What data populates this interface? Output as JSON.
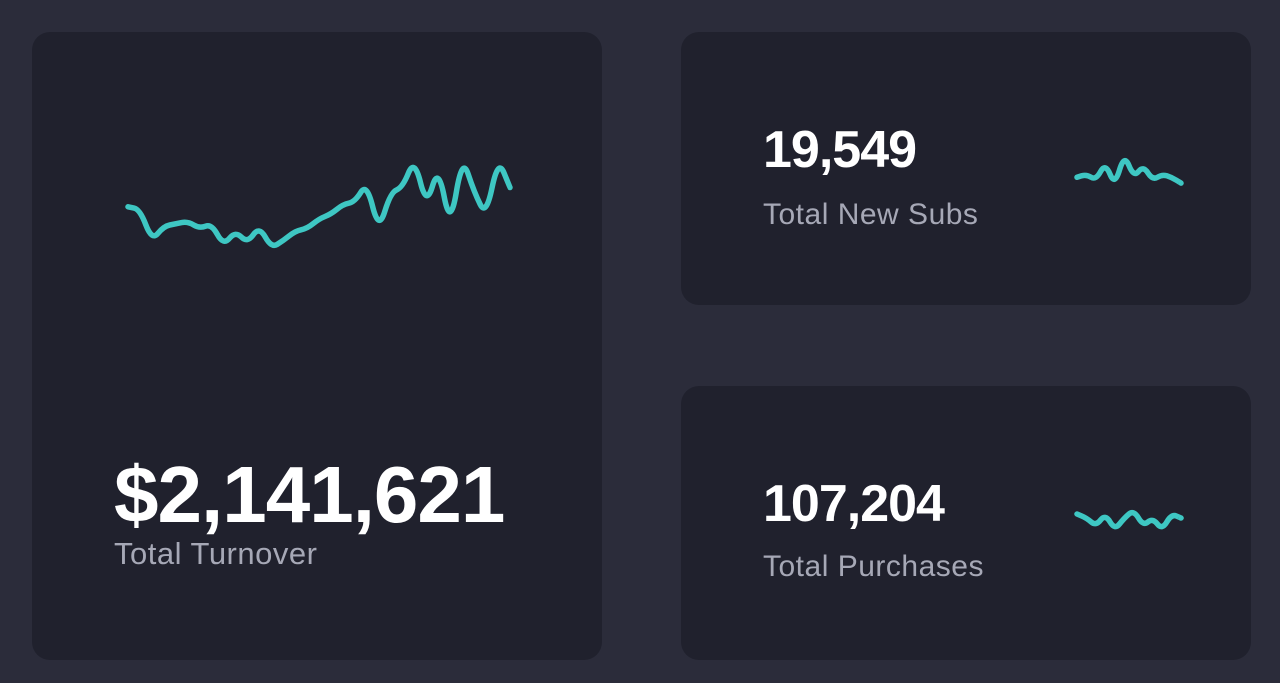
{
  "colors": {
    "background": "#2b2c3a",
    "card": "#20212d",
    "sparkline": "#3ec7c3",
    "value_text": "#ffffff",
    "label_text": "#a6a8b6"
  },
  "cards": [
    {
      "value": "$2,141,621",
      "label": "Total Turnover",
      "sparkline": [
        38,
        37,
        24,
        30,
        31,
        32,
        29,
        31,
        22,
        28,
        23,
        30,
        21,
        24,
        28,
        29,
        33,
        35,
        39,
        40,
        48,
        28,
        44,
        46,
        58,
        38,
        55,
        29,
        59,
        44,
        34,
        58,
        46
      ]
    },
    {
      "value": "19,549",
      "label": "Total New Subs",
      "sparkline": [
        30,
        31,
        29,
        35,
        27,
        38,
        30,
        34,
        29,
        31,
        30,
        28
      ]
    },
    {
      "value": "107,204",
      "label": "Total Purchases",
      "sparkline": [
        31,
        30,
        28,
        31,
        27,
        30,
        32,
        28,
        30,
        27,
        31,
        30
      ]
    }
  ]
}
